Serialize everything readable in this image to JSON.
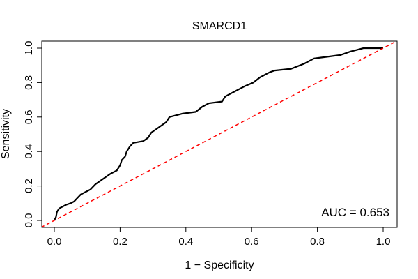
{
  "chart_data": {
    "type": "line",
    "title": "SMARCD1",
    "xlabel": "1 − Specificity",
    "ylabel": "Sensitivity",
    "xlim": [
      0,
      1
    ],
    "ylim": [
      0,
      1
    ],
    "xticks": [
      "0.0",
      "0.2",
      "0.4",
      "0.6",
      "0.8",
      "1.0"
    ],
    "yticks": [
      "0.0",
      "0.2",
      "0.4",
      "0.6",
      "0.8",
      "1.0"
    ],
    "grid": false,
    "annotation": "AUC = 0.653",
    "series": [
      {
        "name": "ROC curve",
        "color": "#000000",
        "style": "solid",
        "points": [
          [
            0.0,
            0.0
          ],
          [
            0.005,
            0.02
          ],
          [
            0.008,
            0.05
          ],
          [
            0.015,
            0.07
          ],
          [
            0.025,
            0.08
          ],
          [
            0.035,
            0.09
          ],
          [
            0.05,
            0.1
          ],
          [
            0.06,
            0.11
          ],
          [
            0.07,
            0.13
          ],
          [
            0.08,
            0.15
          ],
          [
            0.11,
            0.18
          ],
          [
            0.125,
            0.21
          ],
          [
            0.14,
            0.23
          ],
          [
            0.155,
            0.25
          ],
          [
            0.17,
            0.27
          ],
          [
            0.19,
            0.29
          ],
          [
            0.2,
            0.32
          ],
          [
            0.205,
            0.35
          ],
          [
            0.215,
            0.37
          ],
          [
            0.22,
            0.4
          ],
          [
            0.23,
            0.43
          ],
          [
            0.24,
            0.45
          ],
          [
            0.27,
            0.46
          ],
          [
            0.285,
            0.48
          ],
          [
            0.295,
            0.51
          ],
          [
            0.31,
            0.53
          ],
          [
            0.325,
            0.55
          ],
          [
            0.34,
            0.57
          ],
          [
            0.35,
            0.6
          ],
          [
            0.37,
            0.61
          ],
          [
            0.39,
            0.62
          ],
          [
            0.43,
            0.63
          ],
          [
            0.45,
            0.66
          ],
          [
            0.47,
            0.68
          ],
          [
            0.51,
            0.69
          ],
          [
            0.52,
            0.72
          ],
          [
            0.55,
            0.75
          ],
          [
            0.58,
            0.78
          ],
          [
            0.605,
            0.8
          ],
          [
            0.625,
            0.83
          ],
          [
            0.655,
            0.86
          ],
          [
            0.67,
            0.87
          ],
          [
            0.72,
            0.88
          ],
          [
            0.76,
            0.91
          ],
          [
            0.79,
            0.94
          ],
          [
            0.83,
            0.95
          ],
          [
            0.87,
            0.96
          ],
          [
            0.9,
            0.98
          ],
          [
            0.94,
            1.0
          ],
          [
            1.0,
            1.0
          ]
        ]
      },
      {
        "name": "Chance line",
        "color": "#ff0000",
        "style": "dashed",
        "points": [
          [
            -0.04,
            -0.04
          ],
          [
            1.04,
            1.04
          ]
        ]
      }
    ]
  }
}
